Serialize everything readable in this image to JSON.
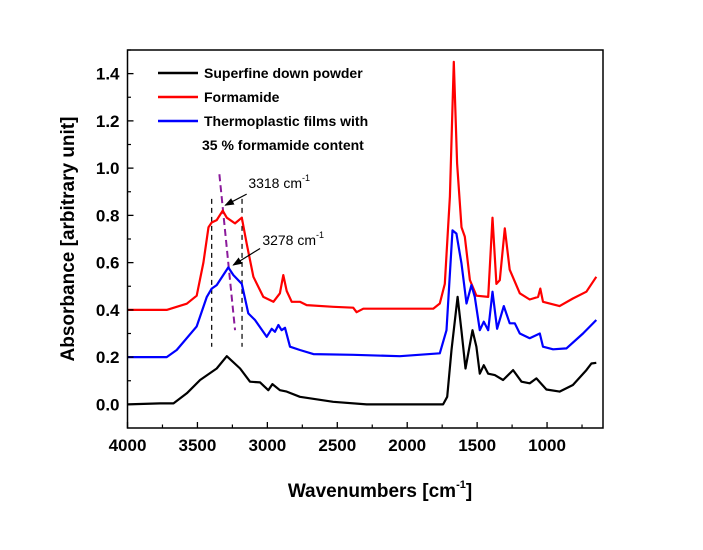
{
  "chart_data": {
    "type": "line",
    "title": "",
    "xlabel": "Wavenumbers [cm",
    "xlabel_sup": "-1",
    "xlabel_end": "]",
    "ylabel": "Absorbance [arbitrary unit]",
    "xlim": [
      4000,
      600
    ],
    "ylim": [
      -0.1,
      1.5
    ],
    "x_ticks": [
      4000,
      3500,
      3000,
      2500,
      2000,
      1500,
      1000
    ],
    "x_tick_labels": [
      "4000",
      "3500",
      "3000",
      "2500",
      "2000",
      "1500",
      "1000"
    ],
    "y_ticks": [
      0.0,
      0.2,
      0.4,
      0.6,
      0.8,
      1.0,
      1.2,
      1.4
    ],
    "y_tick_labels": [
      "0.0",
      "0.2",
      "0.4",
      "0.6",
      "0.8",
      "1.0",
      "1.2",
      "1.4"
    ],
    "grid": false,
    "legend_position": "top-left",
    "series": [
      {
        "name": "Superfine down powder",
        "color": "#000000",
        "x": [
          4000,
          3767,
          3671,
          3576,
          3481,
          3362,
          3290,
          3195,
          3124,
          3052,
          2993,
          2964,
          2910,
          2862,
          2767,
          2529,
          2290,
          1743,
          1714,
          1683,
          1640,
          1612,
          1583,
          1533,
          1505,
          1481,
          1452,
          1421,
          1374,
          1314,
          1243,
          1183,
          1124,
          1076,
          1005,
          910,
          815,
          719,
          683,
          648
        ],
        "y": [
          0.0,
          0.004,
          0.004,
          0.047,
          0.103,
          0.152,
          0.204,
          0.152,
          0.096,
          0.093,
          0.06,
          0.086,
          0.06,
          0.054,
          0.032,
          0.011,
          0.0,
          0.0,
          0.032,
          0.23,
          0.455,
          0.31,
          0.152,
          0.314,
          0.244,
          0.13,
          0.166,
          0.13,
          0.124,
          0.103,
          0.145,
          0.096,
          0.089,
          0.11,
          0.063,
          0.054,
          0.082,
          0.145,
          0.173,
          0.176
        ]
      },
      {
        "name": "Formamide",
        "color": "#ff0000",
        "x": [
          4000,
          3720,
          3576,
          3505,
          3457,
          3421,
          3398,
          3362,
          3319,
          3290,
          3231,
          3183,
          3148,
          3100,
          3029,
          2957,
          2910,
          2886,
          2862,
          2826,
          2767,
          2719,
          2529,
          2386,
          2362,
          2314,
          2052,
          1814,
          1767,
          1731,
          1695,
          1667,
          1643,
          1612,
          1588,
          1552,
          1505,
          1421,
          1390,
          1362,
          1338,
          1302,
          1267,
          1195,
          1124,
          1064,
          1048,
          1029,
          910,
          815,
          719,
          648
        ],
        "y": [
          0.4,
          0.4,
          0.426,
          0.46,
          0.6,
          0.75,
          0.77,
          0.78,
          0.82,
          0.79,
          0.766,
          0.79,
          0.68,
          0.54,
          0.455,
          0.434,
          0.47,
          0.547,
          0.48,
          0.434,
          0.434,
          0.42,
          0.413,
          0.409,
          0.39,
          0.405,
          0.405,
          0.405,
          0.427,
          0.51,
          0.88,
          1.45,
          1.02,
          0.75,
          0.71,
          0.526,
          0.46,
          0.455,
          0.79,
          0.51,
          0.526,
          0.745,
          0.57,
          0.47,
          0.444,
          0.455,
          0.49,
          0.434,
          0.416,
          0.448,
          0.477,
          0.54
        ]
      },
      {
        "name": "Thermoplastic films with",
        "name_line2": "35 % formamide content",
        "color": "#0000ff",
        "x": [
          4000,
          3720,
          3648,
          3505,
          3433,
          3398,
          3362,
          3279,
          3243,
          3183,
          3136,
          3088,
          3005,
          2969,
          2945,
          2921,
          2898,
          2874,
          2838,
          2767,
          2671,
          2386,
          2052,
          1767,
          1719,
          1676,
          1648,
          1612,
          1576,
          1541,
          1517,
          1481,
          1452,
          1421,
          1390,
          1357,
          1309,
          1267,
          1231,
          1195,
          1124,
          1052,
          1029,
          957,
          862,
          743,
          648
        ],
        "y": [
          0.2,
          0.2,
          0.23,
          0.33,
          0.455,
          0.49,
          0.505,
          0.58,
          0.547,
          0.51,
          0.385,
          0.357,
          0.286,
          0.32,
          0.307,
          0.336,
          0.314,
          0.324,
          0.244,
          0.23,
          0.213,
          0.21,
          0.204,
          0.216,
          0.314,
          0.737,
          0.723,
          0.596,
          0.427,
          0.505,
          0.455,
          0.314,
          0.35,
          0.314,
          0.477,
          0.32,
          0.416,
          0.343,
          0.343,
          0.3,
          0.28,
          0.3,
          0.244,
          0.233,
          0.237,
          0.3,
          0.357
        ]
      }
    ],
    "annotations": [
      {
        "text": "3318 cm",
        "sup": "-1",
        "x": 3136,
        "y": 0.915,
        "arrow_from": [
          3148,
          0.89
        ],
        "arrow_to": [
          3300,
          0.843
        ]
      },
      {
        "text": "3278 cm",
        "sup": "-1",
        "x": 3036,
        "y": 0.675,
        "arrow_from": [
          3052,
          0.66
        ],
        "arrow_to": [
          3243,
          0.59
        ]
      }
    ],
    "guide_lines": [
      {
        "kind": "dashed-black",
        "x1": 3398,
        "y1": 0.87,
        "x2": 3398,
        "y2": 0.244
      },
      {
        "kind": "dashed-black",
        "x1": 3181,
        "y1": 0.87,
        "x2": 3181,
        "y2": 0.244
      },
      {
        "kind": "dashed-purple",
        "x1": 3343,
        "y1": 0.974,
        "x2": 3231,
        "y2": 0.314,
        "color": "#8b1a9b"
      }
    ]
  }
}
